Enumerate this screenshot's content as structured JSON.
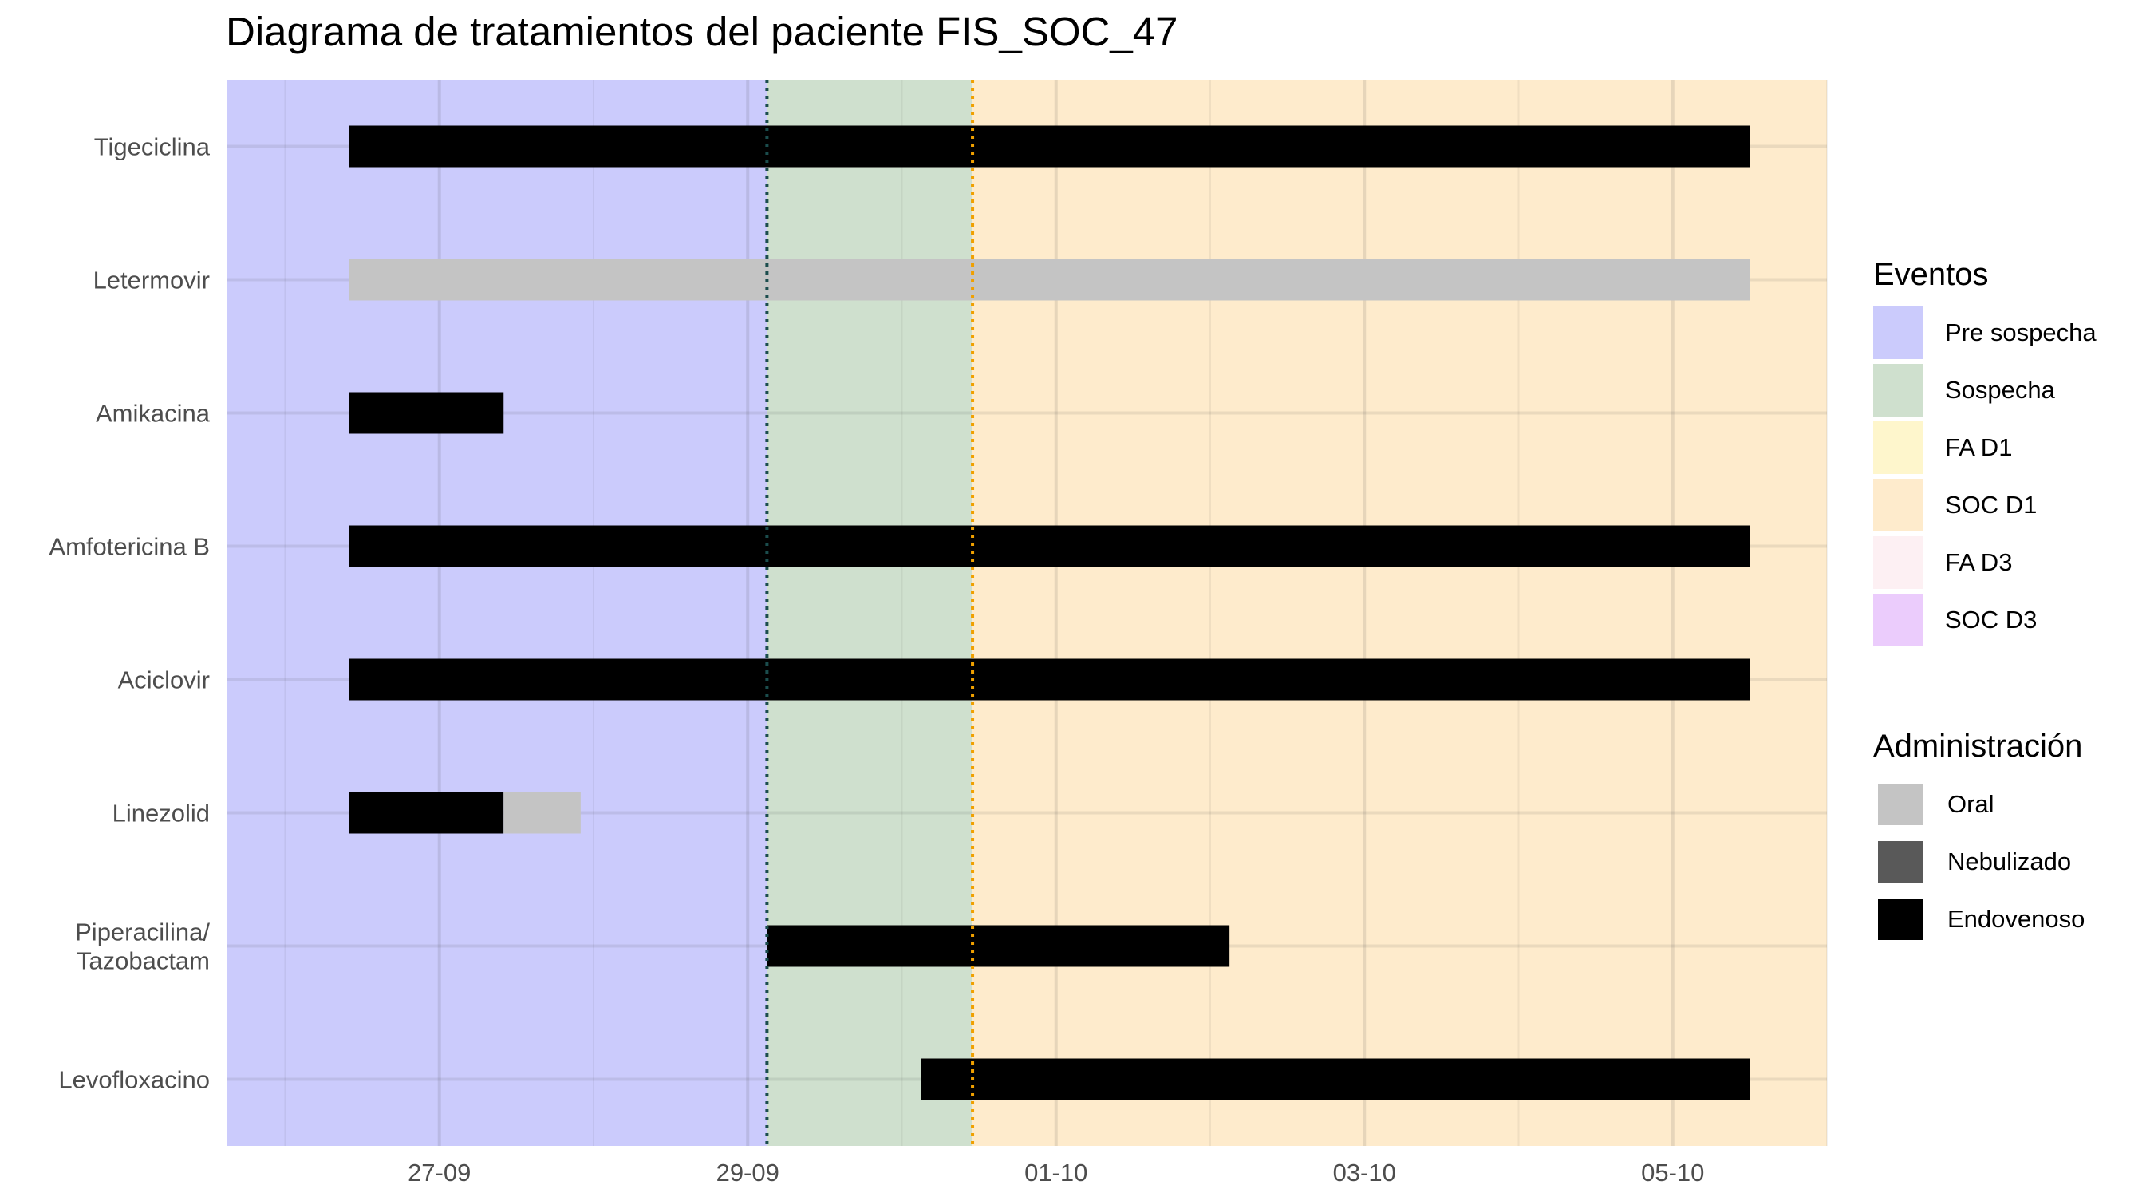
{
  "chart_data": {
    "type": "gantt",
    "title": "Diagrama de tratamientos del paciente FIS_SOC_47",
    "x_axis": {
      "ticks": [
        "27-09",
        "29-09",
        "01-10",
        "03-10",
        "05-10"
      ],
      "tick_dates": [
        "2024-09-27",
        "2024-09-29",
        "2024-10-01",
        "2024-10-03",
        "2024-10-05"
      ],
      "range": [
        "2024-09-25T15:00",
        "2024-10-06T00:00"
      ]
    },
    "y_categories": [
      "Tigeciclina",
      "Letermovir",
      "Amikacina",
      "Amfotericina B",
      "Aciclovir",
      "Linezolid",
      "Piperacilina/\nTazobactam",
      "Levofloxacino"
    ],
    "periods": [
      {
        "name": "Pre sospecha",
        "start": "2024-09-25T15:00",
        "end": "2024-09-29T03:00",
        "color": "#cbcbfc"
      },
      {
        "name": "Sospecha",
        "start": "2024-09-29T03:00",
        "end": "2024-09-30T11:00",
        "color": "#cfe0ce"
      },
      {
        "name": "SOC D1",
        "start": "2024-09-30T11:00",
        "end": "2024-10-06T00:00",
        "color": "#feebcc"
      }
    ],
    "event_lines": [
      {
        "date": "2024-09-29T03:00",
        "color": "#1b4d4d"
      },
      {
        "date": "2024-09-30T11:00",
        "color": "#f0a000"
      }
    ],
    "bars": [
      {
        "drug": "Tigeciclina",
        "start": "2024-09-26T10:00",
        "end": "2024-10-05T12:00",
        "admin": "Endovenoso"
      },
      {
        "drug": "Letermovir",
        "start": "2024-09-26T10:00",
        "end": "2024-10-05T12:00",
        "admin": "Oral"
      },
      {
        "drug": "Amikacina",
        "start": "2024-09-26T10:00",
        "end": "2024-09-27T10:00",
        "admin": "Endovenoso"
      },
      {
        "drug": "Amfotericina B",
        "start": "2024-09-26T10:00",
        "end": "2024-10-05T12:00",
        "admin": "Endovenoso"
      },
      {
        "drug": "Aciclovir",
        "start": "2024-09-26T10:00",
        "end": "2024-10-05T12:00",
        "admin": "Endovenoso"
      },
      {
        "drug": "Linezolid",
        "start": "2024-09-26T10:00",
        "end": "2024-09-27T10:00",
        "admin": "Endovenoso"
      },
      {
        "drug": "Linezolid",
        "start": "2024-09-27T10:00",
        "end": "2024-09-27T22:00",
        "admin": "Oral"
      },
      {
        "drug": "Piperacilina/\nTazobactam",
        "start": "2024-09-29T03:00",
        "end": "2024-10-02T03:00",
        "admin": "Endovenoso"
      },
      {
        "drug": "Levofloxacino",
        "start": "2024-09-30T03:00",
        "end": "2024-10-05T12:00",
        "admin": "Endovenoso"
      }
    ],
    "legends": [
      {
        "title": "Eventos",
        "items": [
          {
            "label": "Pre sospecha",
            "color": "#cbcbfc"
          },
          {
            "label": "Sospecha",
            "color": "#cfe0ce"
          },
          {
            "label": "FA D1",
            "color": "#fef6cc"
          },
          {
            "label": "SOC D1",
            "color": "#feebcc"
          },
          {
            "label": "FA D3",
            "color": "#fdf0f3"
          },
          {
            "label": "SOC D3",
            "color": "#ebccfc"
          }
        ]
      },
      {
        "title": "Administración",
        "items": [
          {
            "label": "Oral",
            "color": "#c4c4c4"
          },
          {
            "label": "Nebulizado",
            "color": "#595959"
          },
          {
            "label": "Endovenoso",
            "color": "#000000"
          }
        ]
      }
    ],
    "grid": true,
    "legend_position": "right"
  }
}
